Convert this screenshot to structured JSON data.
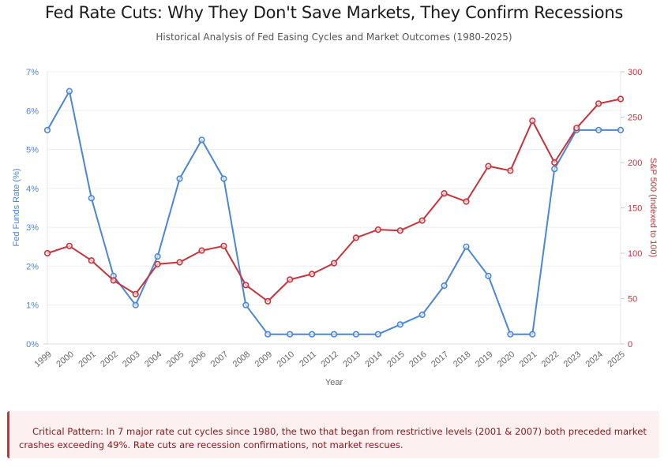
{
  "page": {
    "title": "Fed Rate Cuts: Why They Don't Save Markets, They Confirm Recessions",
    "subtitle": "Historical Analysis of Fed Easing Cycles and Market Outcomes (1980-2025)"
  },
  "callout": {
    "text": "Critical Pattern: In 7 major rate cut cycles since 1980, the two that began from restrictive levels (2001 & 2007) both preceded market crashes exceeding 49%. Rate cuts are recession confirmations, not market rescues."
  },
  "chart_data": {
    "type": "line",
    "title": "Fed Rate Cuts: Why They Don't Save Markets, They Confirm Recessions",
    "subtitle": "Historical Analysis of Fed Easing Cycles and Market Outcomes (1980-2025)",
    "xlabel": "Year",
    "ylabel": "Fed Funds Rate (%)",
    "y2label": "S&P 500 (Indexed to 100)",
    "x": [
      "1999",
      "2000",
      "2001",
      "2002",
      "2003",
      "2004",
      "2005",
      "2006",
      "2007",
      "2008",
      "2009",
      "2010",
      "2011",
      "2012",
      "2013",
      "2014",
      "2015",
      "2016",
      "2017",
      "2018",
      "2019",
      "2020",
      "2021",
      "2022",
      "2023",
      "2024",
      "2025"
    ],
    "ylim": [
      0,
      7
    ],
    "y2lim": [
      0,
      300
    ],
    "yticks": [
      "0%",
      "1%",
      "2%",
      "3%",
      "4%",
      "5%",
      "6%",
      "7%"
    ],
    "y2ticks": [
      "0",
      "50",
      "100",
      "150",
      "200",
      "250",
      "300"
    ],
    "grid": true,
    "series": [
      {
        "name": "Fed Funds Rate (%)",
        "axis": "left",
        "color": "#4a86d8",
        "values": [
          5.5,
          6.5,
          3.75,
          1.75,
          1.0,
          2.25,
          4.25,
          5.25,
          4.25,
          1.0,
          0.25,
          0.25,
          0.25,
          0.25,
          0.25,
          0.25,
          0.5,
          0.75,
          1.5,
          2.5,
          1.75,
          0.25,
          0.25,
          4.5,
          5.5,
          5.5,
          5.5
        ]
      },
      {
        "name": "S&P 500 (Indexed to 100)",
        "axis": "right",
        "color": "#c8323a",
        "values": [
          100,
          108,
          92,
          70,
          55,
          88,
          90,
          103,
          108,
          65,
          47,
          71,
          77,
          89,
          117,
          126,
          125,
          136,
          166,
          157,
          196,
          191,
          246,
          200,
          238,
          265,
          270
        ]
      }
    ]
  }
}
